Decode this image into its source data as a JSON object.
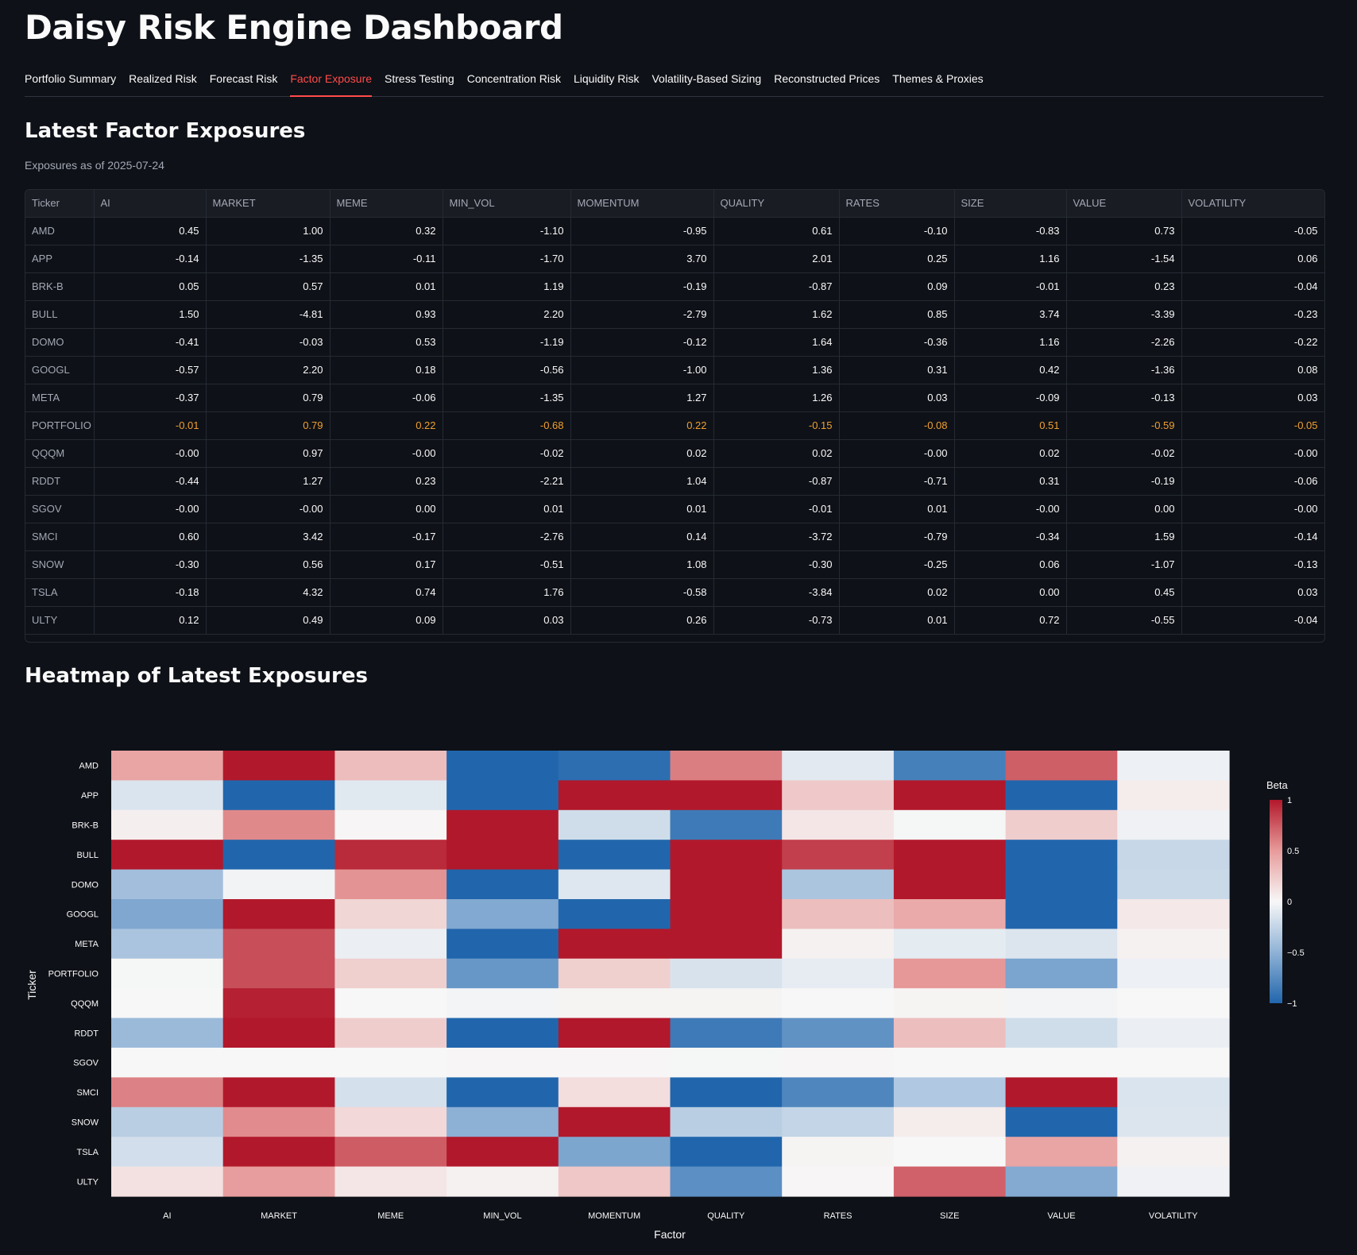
{
  "app": {
    "title": "Daisy Risk Engine Dashboard"
  },
  "tabs": [
    {
      "label": "Portfolio Summary"
    },
    {
      "label": "Realized Risk"
    },
    {
      "label": "Forecast Risk"
    },
    {
      "label": "Factor Exposure",
      "active": true
    },
    {
      "label": "Stress Testing"
    },
    {
      "label": "Concentration Risk"
    },
    {
      "label": "Liquidity Risk"
    },
    {
      "label": "Volatility-Based Sizing"
    },
    {
      "label": "Reconstructed Prices"
    },
    {
      "label": "Themes & Proxies"
    }
  ],
  "section1": {
    "title": "Latest Factor Exposures",
    "caption": "Exposures as of 2025-07-24"
  },
  "table": {
    "columns": [
      "Ticker",
      "AI",
      "MARKET",
      "MEME",
      "MIN_VOL",
      "MOMENTUM",
      "QUALITY",
      "RATES",
      "SIZE",
      "VALUE",
      "VOLATILITY"
    ],
    "highlight_color": "#f0a030",
    "rows": [
      {
        "ticker": "AMD",
        "values": [
          "0.45",
          "1.00",
          "0.32",
          "-1.10",
          "-0.95",
          "0.61",
          "-0.10",
          "-0.83",
          "0.73",
          "-0.05"
        ]
      },
      {
        "ticker": "APP",
        "values": [
          "-0.14",
          "-1.35",
          "-0.11",
          "-1.70",
          "3.70",
          "2.01",
          "0.25",
          "1.16",
          "-1.54",
          "0.06"
        ]
      },
      {
        "ticker": "BRK-B",
        "values": [
          "0.05",
          "0.57",
          "0.01",
          "1.19",
          "-0.19",
          "-0.87",
          "0.09",
          "-0.01",
          "0.23",
          "-0.04"
        ]
      },
      {
        "ticker": "BULL",
        "values": [
          "1.50",
          "-4.81",
          "0.93",
          "2.20",
          "-2.79",
          "1.62",
          "0.85",
          "3.74",
          "-3.39",
          "-0.23"
        ]
      },
      {
        "ticker": "DOMO",
        "values": [
          "-0.41",
          "-0.03",
          "0.53",
          "-1.19",
          "-0.12",
          "1.64",
          "-0.36",
          "1.16",
          "-2.26",
          "-0.22"
        ]
      },
      {
        "ticker": "GOOGL",
        "values": [
          "-0.57",
          "2.20",
          "0.18",
          "-0.56",
          "-1.00",
          "1.36",
          "0.31",
          "0.42",
          "-1.36",
          "0.08"
        ]
      },
      {
        "ticker": "META",
        "values": [
          "-0.37",
          "0.79",
          "-0.06",
          "-1.35",
          "1.27",
          "1.26",
          "0.03",
          "-0.09",
          "-0.13",
          "0.03"
        ]
      },
      {
        "ticker": "PORTFOLIO",
        "highlight": true,
        "values": [
          "-0.01",
          "0.79",
          "0.22",
          "-0.68",
          "0.22",
          "-0.15",
          "-0.08",
          "0.51",
          "-0.59",
          "-0.05"
        ]
      },
      {
        "ticker": "QQQM",
        "values": [
          "-0.00",
          "0.97",
          "-0.00",
          "-0.02",
          "0.02",
          "0.02",
          "-0.00",
          "0.02",
          "-0.02",
          "-0.00"
        ]
      },
      {
        "ticker": "RDDT",
        "values": [
          "-0.44",
          "1.27",
          "0.23",
          "-2.21",
          "1.04",
          "-0.87",
          "-0.71",
          "0.31",
          "-0.19",
          "-0.06"
        ]
      },
      {
        "ticker": "SGOV",
        "values": [
          "-0.00",
          "-0.00",
          "0.00",
          "0.01",
          "0.01",
          "-0.01",
          "0.01",
          "-0.00",
          "0.00",
          "-0.00"
        ]
      },
      {
        "ticker": "SMCI",
        "values": [
          "0.60",
          "3.42",
          "-0.17",
          "-2.76",
          "0.14",
          "-3.72",
          "-0.79",
          "-0.34",
          "1.59",
          "-0.14"
        ]
      },
      {
        "ticker": "SNOW",
        "values": [
          "-0.30",
          "0.56",
          "0.17",
          "-0.51",
          "1.08",
          "-0.30",
          "-0.25",
          "0.06",
          "-1.07",
          "-0.13"
        ]
      },
      {
        "ticker": "TSLA",
        "values": [
          "-0.18",
          "4.32",
          "0.74",
          "1.76",
          "-0.58",
          "-3.84",
          "0.02",
          "0.00",
          "0.45",
          "0.03"
        ]
      },
      {
        "ticker": "ULTY",
        "values": [
          "0.12",
          "0.49",
          "0.09",
          "0.03",
          "0.26",
          "-0.73",
          "0.01",
          "0.72",
          "-0.55",
          "-0.04"
        ]
      }
    ]
  },
  "section2": {
    "title": "Heatmap of Latest Exposures"
  },
  "chart_data": {
    "type": "heatmap",
    "xlabel": "Factor",
    "ylabel": "Ticker",
    "colorbar_title": "Beta",
    "zmin": -1,
    "zmax": 1,
    "colorbar_ticks": [
      "1",
      "0.5",
      "0",
      "−0.5",
      "−1"
    ],
    "colorbar_tick_values": [
      1,
      0.5,
      0,
      -0.5,
      -1
    ],
    "colorscale": "RdBu (blue = -1, white = 0, red = 1)",
    "x": [
      "AI",
      "MARKET",
      "MEME",
      "MIN_VOL",
      "MOMENTUM",
      "QUALITY",
      "RATES",
      "SIZE",
      "VALUE",
      "VOLATILITY"
    ],
    "y": [
      "AMD",
      "APP",
      "BRK-B",
      "BULL",
      "DOMO",
      "GOOGL",
      "META",
      "PORTFOLIO",
      "QQQM",
      "RDDT",
      "SGOV",
      "SMCI",
      "SNOW",
      "TSLA",
      "ULTY"
    ],
    "z": [
      [
        0.45,
        1.0,
        0.32,
        -1.1,
        -0.95,
        0.61,
        -0.1,
        -0.83,
        0.73,
        -0.05
      ],
      [
        -0.14,
        -1.35,
        -0.11,
        -1.7,
        3.7,
        2.01,
        0.25,
        1.16,
        -1.54,
        0.06
      ],
      [
        0.05,
        0.57,
        0.01,
        1.19,
        -0.19,
        -0.87,
        0.09,
        -0.01,
        0.23,
        -0.04
      ],
      [
        1.5,
        -4.81,
        0.93,
        2.2,
        -2.79,
        1.62,
        0.85,
        3.74,
        -3.39,
        -0.23
      ],
      [
        -0.41,
        -0.03,
        0.53,
        -1.19,
        -0.12,
        1.64,
        -0.36,
        1.16,
        -2.26,
        -0.22
      ],
      [
        -0.57,
        2.2,
        0.18,
        -0.56,
        -1.0,
        1.36,
        0.31,
        0.42,
        -1.36,
        0.08
      ],
      [
        -0.37,
        0.79,
        -0.06,
        -1.35,
        1.27,
        1.26,
        0.03,
        -0.09,
        -0.13,
        0.03
      ],
      [
        -0.01,
        0.79,
        0.22,
        -0.68,
        0.22,
        -0.15,
        -0.08,
        0.51,
        -0.59,
        -0.05
      ],
      [
        -0.0,
        0.97,
        -0.0,
        -0.02,
        0.02,
        0.02,
        -0.0,
        0.02,
        -0.02,
        -0.0
      ],
      [
        -0.44,
        1.27,
        0.23,
        -2.21,
        1.04,
        -0.87,
        -0.71,
        0.31,
        -0.19,
        -0.06
      ],
      [
        -0.0,
        -0.0,
        0.0,
        0.01,
        0.01,
        -0.01,
        0.01,
        -0.0,
        0.0,
        -0.0
      ],
      [
        0.6,
        3.42,
        -0.17,
        -2.76,
        0.14,
        -3.72,
        -0.79,
        -0.34,
        1.59,
        -0.14
      ],
      [
        -0.3,
        0.56,
        0.17,
        -0.51,
        1.08,
        -0.3,
        -0.25,
        0.06,
        -1.07,
        -0.13
      ],
      [
        -0.18,
        4.32,
        0.74,
        1.76,
        -0.58,
        -3.84,
        0.02,
        0.0,
        0.45,
        0.03
      ],
      [
        0.12,
        0.49,
        0.09,
        0.03,
        0.26,
        -0.73,
        0.01,
        0.72,
        -0.55,
        -0.04
      ]
    ]
  }
}
